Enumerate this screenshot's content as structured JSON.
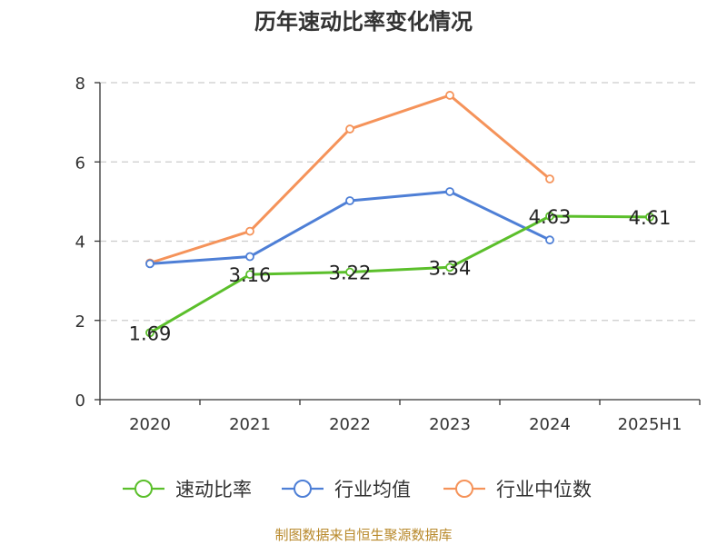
{
  "chart_data": {
    "type": "line",
    "title": "历年速动比率变化情况",
    "xlabel": "",
    "ylabel": "",
    "categories": [
      "2020",
      "2021",
      "2022",
      "2023",
      "2024",
      "2025H1"
    ],
    "ylim": [
      0,
      8
    ],
    "yticks": [
      0,
      2,
      4,
      6,
      8
    ],
    "grid": true,
    "legend_position": "bottom",
    "series": [
      {
        "name": "速动比率",
        "color": "#5bbf2b",
        "values": [
          1.69,
          3.16,
          3.22,
          3.34,
          4.63,
          4.61
        ],
        "labels": [
          "1.69",
          "3.16",
          "3.22",
          "3.34",
          "4.63",
          "4.61"
        ]
      },
      {
        "name": "行业均值",
        "color": "#4e7fd6",
        "values": [
          3.43,
          3.61,
          5.02,
          5.25,
          4.03,
          null
        ]
      },
      {
        "name": "行业中位数",
        "color": "#f5935a",
        "values": [
          3.45,
          4.25,
          6.83,
          7.68,
          5.57,
          null
        ]
      }
    ]
  },
  "footer": {
    "source": "制图数据来自恒生聚源数据库"
  }
}
